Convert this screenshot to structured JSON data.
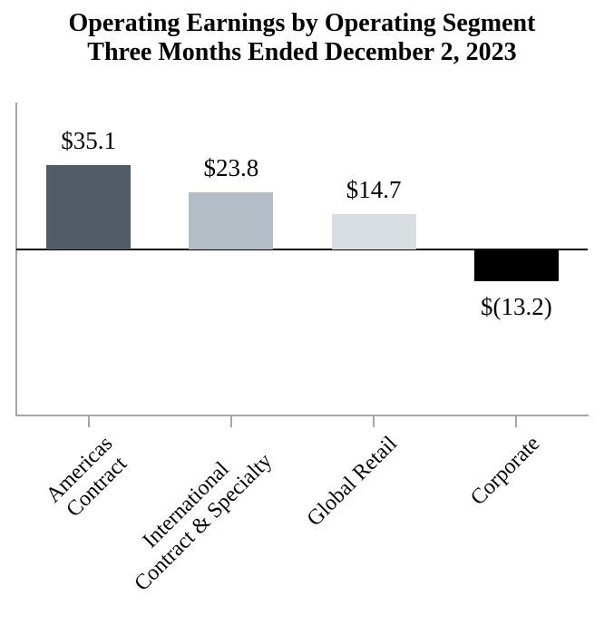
{
  "chart_data": {
    "type": "bar",
    "title": "Operating Earnings by Operating Segment",
    "subtitle": "Three Months Ended December 2, 2023",
    "categories": [
      "Americas Contract",
      "International Contract & Specialty",
      "Global Retail",
      "Corporate"
    ],
    "tick_labels": [
      "Americas\nContract",
      "International\nContract & Specialty",
      "Global Retail",
      "Corporate"
    ],
    "values": [
      35.1,
      23.8,
      14.7,
      -13.2
    ],
    "data_labels": [
      "$35.1",
      "$23.8",
      "$14.7",
      "$(13.2)"
    ],
    "bar_colors": [
      "#515b65",
      "#b4bdc6",
      "#d9dee2",
      "#000000"
    ],
    "axis_color": "#a6a6a6",
    "baseline_color": "#000000",
    "text_color": "#000000",
    "ylim": [
      -70,
      62
    ],
    "grid": false,
    "legend": false,
    "y_axis_ticks": [],
    "xlabel": "",
    "ylabel": ""
  }
}
